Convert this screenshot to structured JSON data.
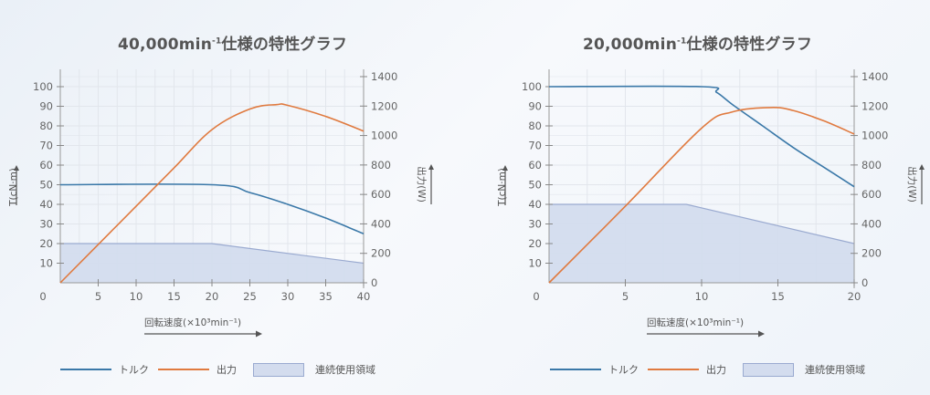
{
  "chart_data": [
    {
      "type": "line",
      "title": "40,000min-1仕様の特性グラフ",
      "title_main": "40,000min",
      "title_sup": "-1",
      "title_rest": "仕様の特性グラフ",
      "xlabel": "回転速度(×10³min⁻¹)",
      "ylabel": "T(cN·m)",
      "y2label": "出力(W)",
      "xlim": [
        0,
        40
      ],
      "ylim": [
        0,
        100
      ],
      "y2lim": [
        0,
        1400
      ],
      "x_ticks": [
        "0",
        "5",
        "10",
        "15",
        "20",
        "25",
        "30",
        "35",
        "40"
      ],
      "y_ticks": [
        "10",
        "20",
        "30",
        "40",
        "50",
        "60",
        "70",
        "80",
        "90",
        "100"
      ],
      "y2_ticks": [
        "0",
        "200",
        "400",
        "600",
        "800",
        "1000",
        "1200",
        "1400"
      ],
      "grid": true,
      "legend_position": "bottom",
      "series": [
        {
          "name": "トルク",
          "axis": "left",
          "color": "#3a78a8",
          "x": [
            0,
            20,
            25,
            30,
            35,
            40
          ],
          "values": [
            50,
            50,
            46,
            40,
            33,
            25
          ]
        },
        {
          "name": "出力",
          "axis": "right",
          "color": "#e07a3f",
          "x": [
            0,
            5,
            10,
            15,
            20,
            25,
            28.5,
            30,
            35,
            40
          ],
          "values": [
            0,
            260,
            520,
            780,
            1040,
            1180,
            1210,
            1205,
            1130,
            1030
          ]
        },
        {
          "name": "連続使用領域",
          "axis": "left",
          "type": "area",
          "color": "#d3dcee",
          "x": [
            0,
            20,
            40
          ],
          "values": [
            20,
            20,
            10
          ]
        }
      ]
    },
    {
      "type": "line",
      "title": "20,000min-1仕様の特性グラフ",
      "title_main": "20,000min",
      "title_sup": "-1",
      "title_rest": "仕様の特性グラフ",
      "xlabel": "回転速度(×10³min⁻¹)",
      "ylabel": "T(cN·m)",
      "y2label": "出力(W)",
      "xlim": [
        0,
        20
      ],
      "ylim": [
        0,
        100
      ],
      "y2lim": [
        0,
        1400
      ],
      "x_ticks": [
        "0",
        "5",
        "10",
        "15",
        "20"
      ],
      "y_ticks": [
        "10",
        "20",
        "30",
        "40",
        "50",
        "60",
        "70",
        "80",
        "90",
        "100"
      ],
      "y2_ticks": [
        "0",
        "200",
        "400",
        "600",
        "800",
        "1000",
        "1200",
        "1400"
      ],
      "grid": true,
      "legend_position": "bottom",
      "series": [
        {
          "name": "トルク",
          "axis": "left",
          "color": "#3a78a8",
          "x": [
            0,
            10,
            11,
            12,
            14,
            16,
            18,
            20
          ],
          "values": [
            100,
            100,
            97,
            91,
            80,
            69,
            59,
            49
          ]
        },
        {
          "name": "出力",
          "axis": "right",
          "color": "#e07a3f",
          "x": [
            0,
            5,
            10,
            12,
            14.5,
            16,
            18,
            20
          ],
          "values": [
            0,
            520,
            1050,
            1160,
            1190,
            1170,
            1100,
            1010
          ]
        },
        {
          "name": "連続使用領域",
          "axis": "left",
          "type": "area",
          "color": "#d3dcee",
          "x": [
            0,
            9,
            20
          ],
          "values": [
            40,
            40,
            20
          ]
        }
      ]
    }
  ],
  "legend": {
    "torque": "トルク",
    "power": "出力",
    "continuous": "連続使用領域"
  },
  "colors": {
    "torque": "#3a78a8",
    "power": "#e07a3f",
    "area_fill": "#d3dcee",
    "area_edge": "#9aaad0",
    "grid": "#e2e6ec"
  }
}
